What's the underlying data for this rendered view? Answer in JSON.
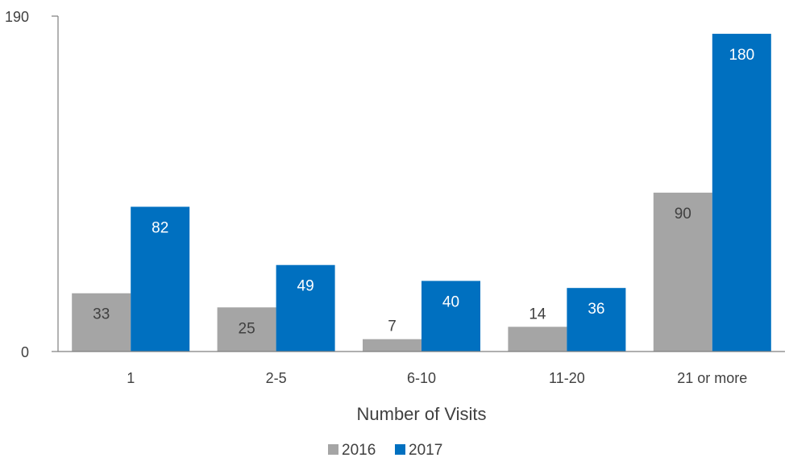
{
  "chart_data": {
    "type": "bar",
    "title": "",
    "xlabel": "Number of Visits",
    "ylabel": "",
    "categories": [
      "1",
      "2-5",
      "6-10",
      "11-20",
      "21 or more"
    ],
    "series": [
      {
        "name": "2016",
        "values": [
          33,
          25,
          7,
          14,
          90
        ],
        "color": "#a5a5a5",
        "label_color": "#404040"
      },
      {
        "name": "2017",
        "values": [
          82,
          49,
          40,
          36,
          180
        ],
        "color": "#0070c0",
        "label_color": "#ffffff"
      }
    ],
    "ylim": [
      0,
      190
    ],
    "yticks": [
      "0",
      "190"
    ],
    "grid": false,
    "legend": "bottom-center"
  }
}
